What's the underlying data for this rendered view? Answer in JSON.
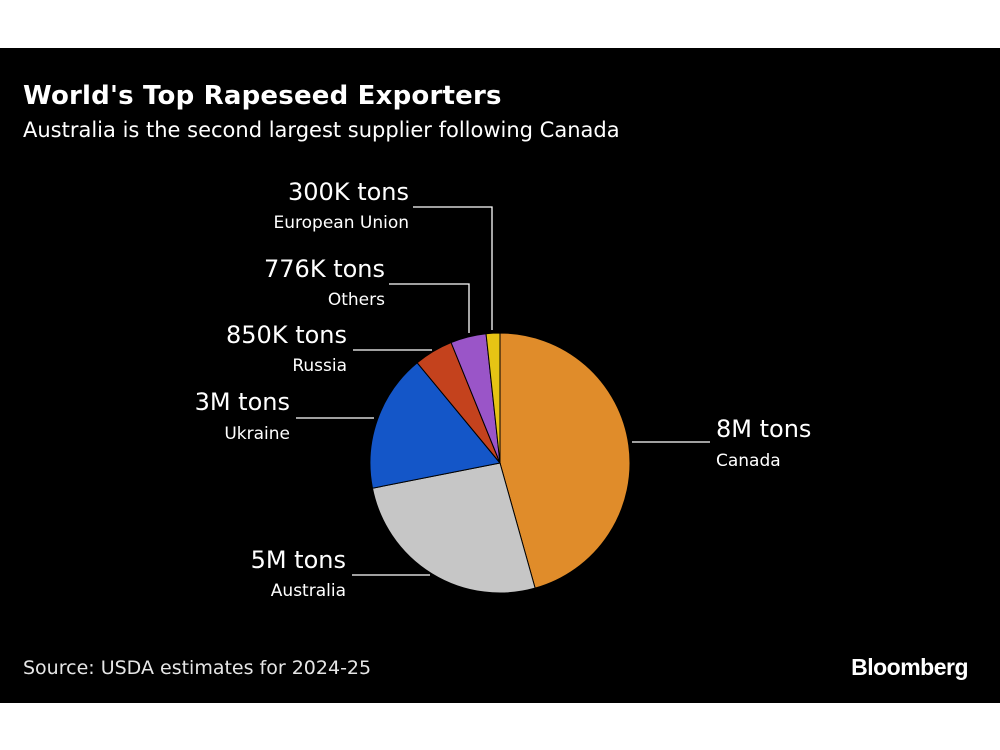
{
  "title": "World's Top Rapeseed Exporters",
  "subtitle": "Australia is the second largest supplier following Canada",
  "source": "Source: USDA estimates for 2024-25",
  "brand": "Bloomberg",
  "chart_data": {
    "type": "pie",
    "title": "World's Top Rapeseed Exporters",
    "subtitle": "Australia is the second largest supplier following Canada",
    "unit": "tons",
    "slices": [
      {
        "name": "Canada",
        "value": 8000000,
        "label": "8M tons",
        "color": "#e08c2a"
      },
      {
        "name": "Australia",
        "value": 4600000,
        "label": "5M tons",
        "color": "#c6c6c6"
      },
      {
        "name": "Ukraine",
        "value": 3000000,
        "label": "3M tons",
        "color": "#1456c8"
      },
      {
        "name": "Russia",
        "value": 850000,
        "label": "850K tons",
        "color": "#c4421d"
      },
      {
        "name": "Others",
        "value": 776000,
        "label": "776K tons",
        "color": "#9a55c8"
      },
      {
        "name": "European Union",
        "value": 300000,
        "label": "300K tons",
        "color": "#e6c414"
      }
    ]
  }
}
